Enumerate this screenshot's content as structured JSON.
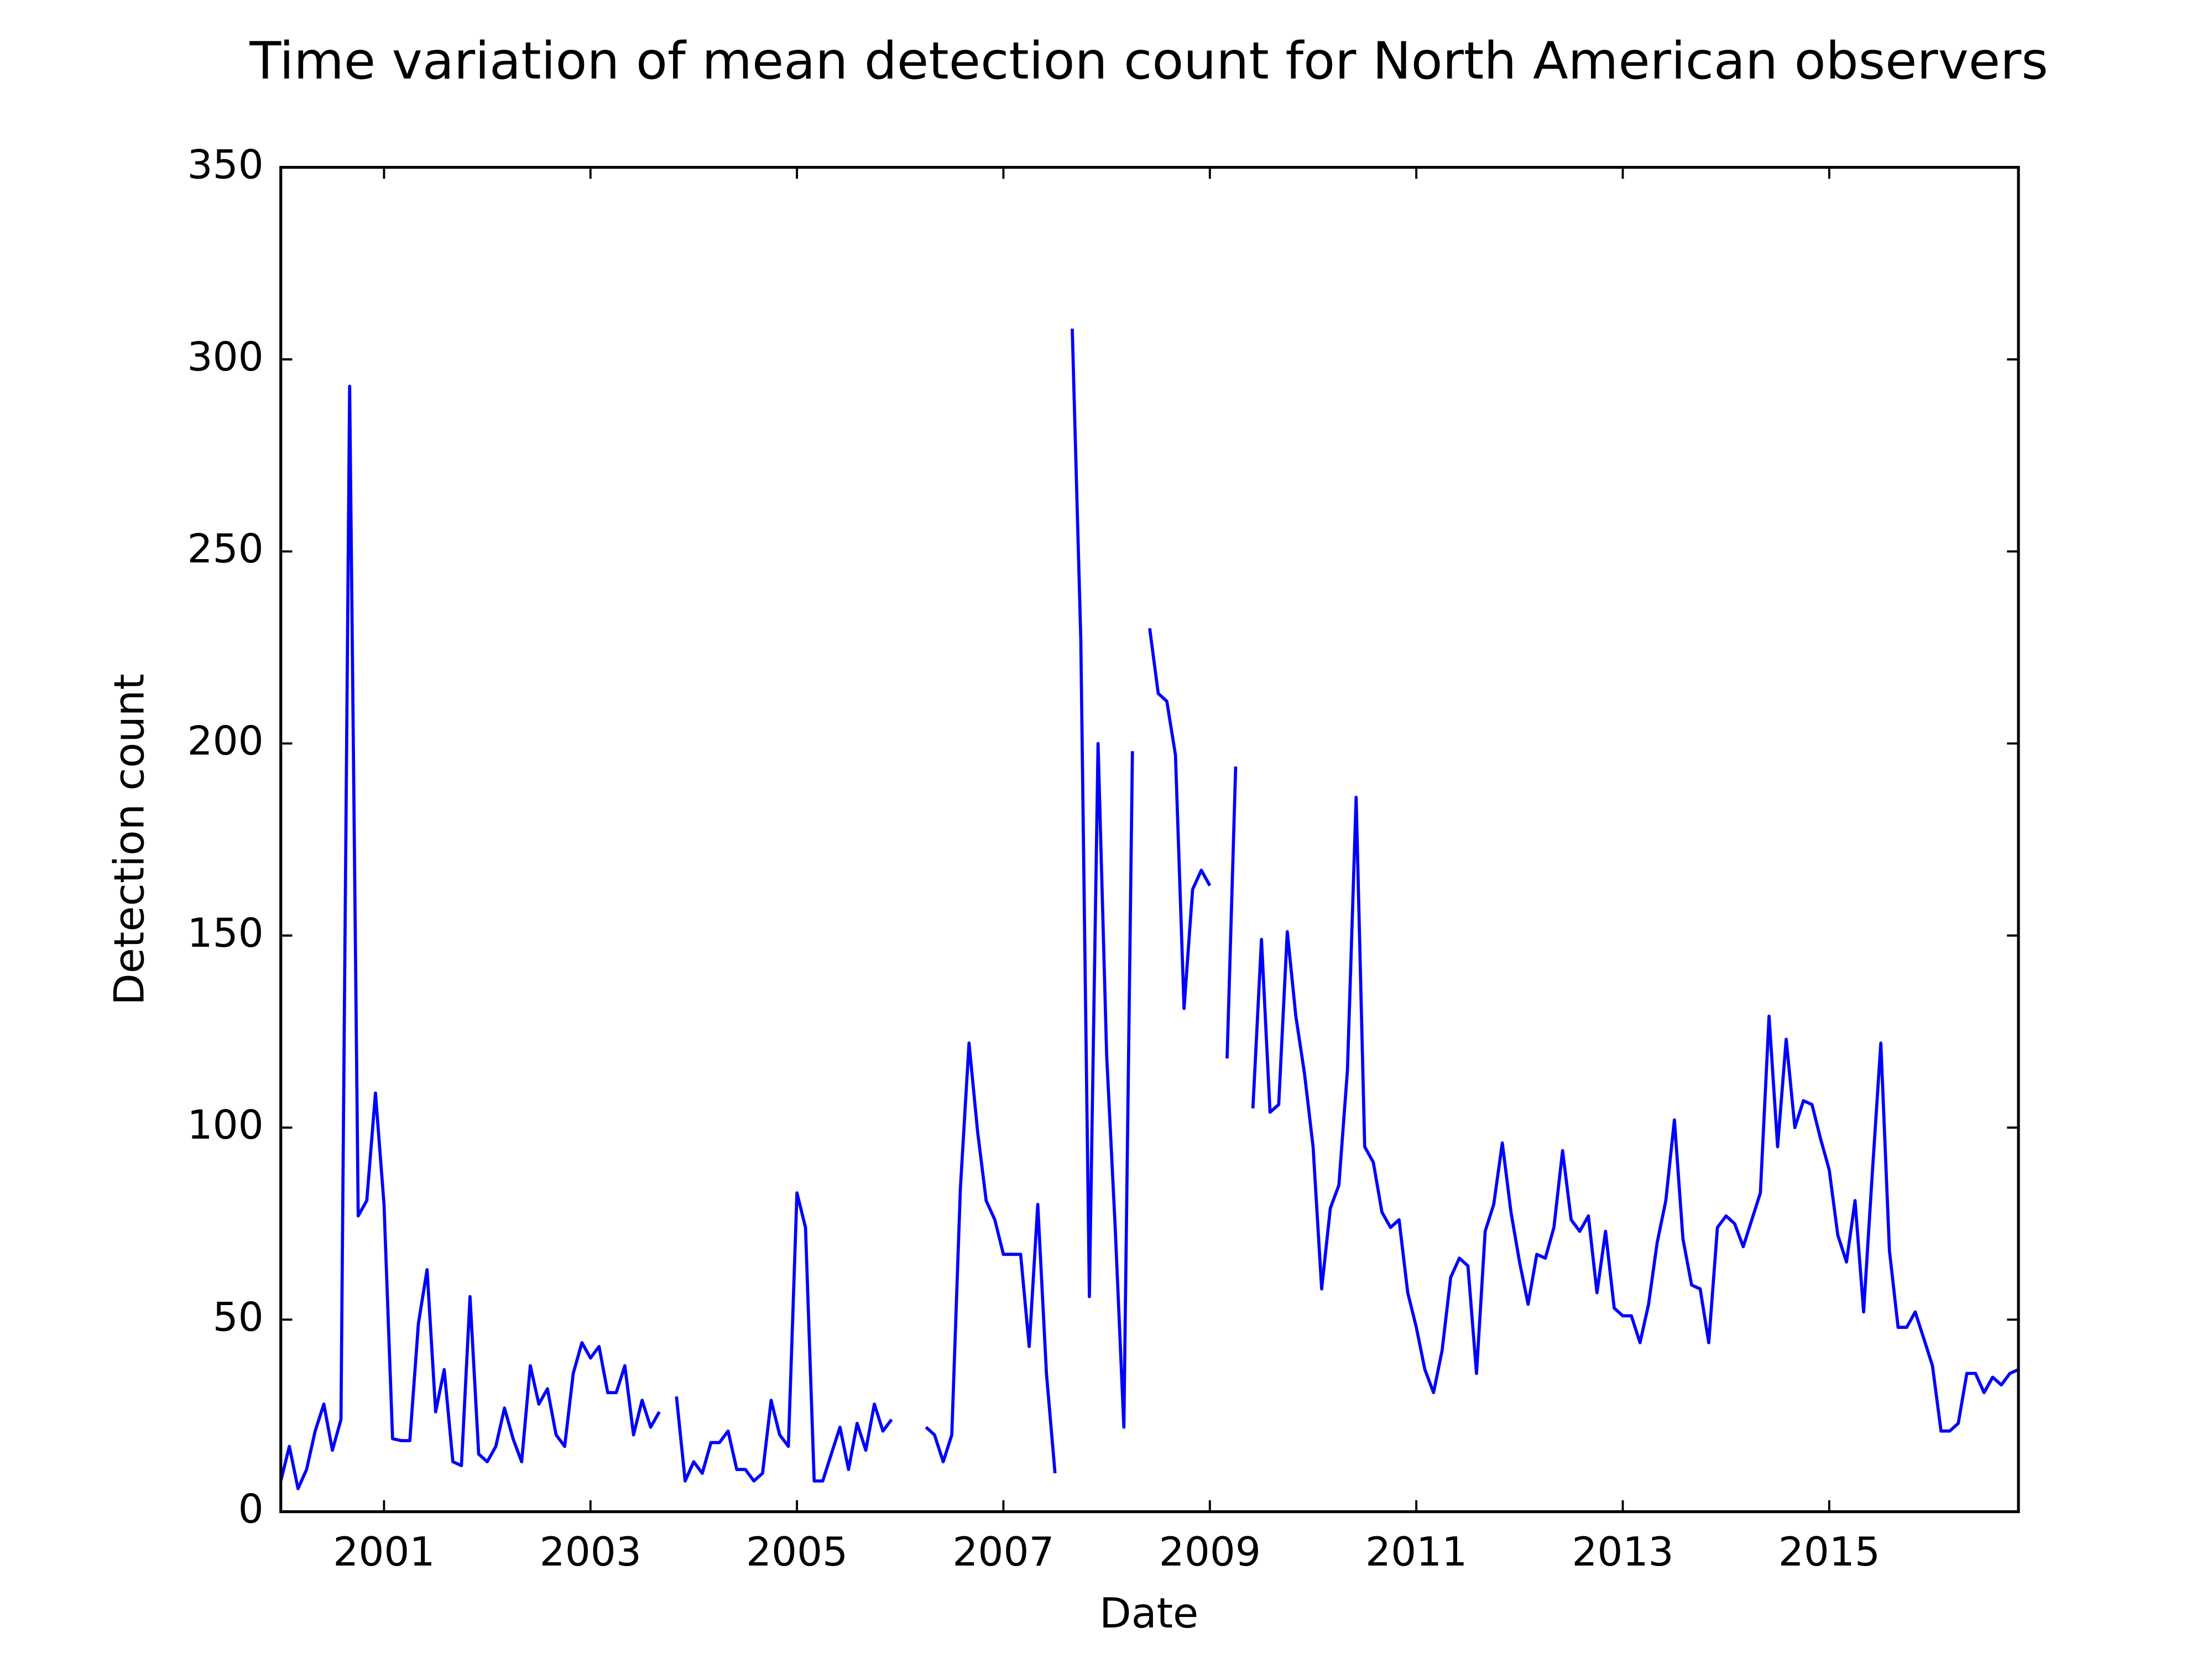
{
  "chart_data": {
    "type": "line",
    "title": "Time variation of mean detection count for North American observers",
    "x_label": "Date",
    "y_label": "Detection count",
    "xlim": [
      2000,
      2016.833
    ],
    "xticks": [
      2001,
      2003,
      2005,
      2007,
      2009,
      2011,
      2013,
      2015
    ],
    "ylim": [
      0,
      350
    ],
    "yticks": [
      0,
      50,
      100,
      150,
      200,
      250,
      300,
      350
    ],
    "grid": false,
    "series": [
      {
        "color": "#0000ff",
        "x": [
          2000,
          2000.083,
          2000.167,
          2000.25,
          2000.333,
          2000.417,
          2000.5,
          2000.583,
          2000.667,
          2000.75,
          2000.833,
          2000.917,
          2001,
          2001.083,
          2001.167,
          2001.25,
          2001.333,
          2001.417,
          2001.5,
          2001.583,
          2001.667,
          2001.75,
          2001.833,
          2001.917,
          2002,
          2002.083,
          2002.167,
          2002.25,
          2002.333,
          2002.417,
          2002.5,
          2002.583,
          2002.667,
          2002.75,
          2002.833,
          2002.917,
          2003,
          2003.083,
          2003.167,
          2003.25,
          2003.333,
          2003.417,
          2003.5,
          2003.583,
          2003.667,
          2003.75,
          2003.833,
          2003.917,
          2004,
          2004.083,
          2004.167,
          2004.25,
          2004.333,
          2004.417,
          2004.5,
          2004.583,
          2004.667,
          2004.75,
          2004.833,
          2004.917,
          2005,
          2005.083,
          2005.167,
          2005.25,
          2005.333,
          2005.417,
          2005.5,
          2005.583,
          2005.667,
          2005.75,
          2005.833,
          2005.917,
          2006,
          2006.083,
          2006.167,
          2006.25,
          2006.333,
          2006.417,
          2006.5,
          2006.583,
          2006.667,
          2006.75,
          2006.833,
          2006.917,
          2007,
          2007.083,
          2007.167,
          2007.25,
          2007.333,
          2007.417,
          2007.5,
          2007.583,
          2007.667,
          2007.75,
          2007.833,
          2007.917,
          2008,
          2008.083,
          2008.167,
          2008.25,
          2008.333,
          2008.417,
          2008.5,
          2008.583,
          2008.667,
          2008.75,
          2008.833,
          2008.917,
          2009,
          2009.083,
          2009.167,
          2009.25,
          2009.333,
          2009.417,
          2009.5,
          2009.583,
          2009.667,
          2009.75,
          2009.833,
          2009.917,
          2010,
          2010.083,
          2010.167,
          2010.25,
          2010.333,
          2010.417,
          2010.5,
          2010.583,
          2010.667,
          2010.75,
          2010.833,
          2010.917,
          2011,
          2011.083,
          2011.167,
          2011.25,
          2011.333,
          2011.417,
          2011.5,
          2011.583,
          2011.667,
          2011.75,
          2011.833,
          2011.917,
          2012,
          2012.083,
          2012.167,
          2012.25,
          2012.333,
          2012.417,
          2012.5,
          2012.583,
          2012.667,
          2012.75,
          2012.833,
          2012.917,
          2013,
          2013.083,
          2013.167,
          2013.25,
          2013.333,
          2013.417,
          2013.5,
          2013.583,
          2013.667,
          2013.75,
          2013.833,
          2013.917,
          2014,
          2014.083,
          2014.167,
          2014.25,
          2014.333,
          2014.417,
          2014.5,
          2014.583,
          2014.667,
          2014.75,
          2014.833,
          2014.917,
          2015,
          2015.083,
          2015.167,
          2015.25,
          2015.333,
          2015.417,
          2015.5,
          2015.583,
          2015.667,
          2015.75,
          2015.833,
          2015.917,
          2016,
          2016.083,
          2016.167,
          2016.25,
          2016.333,
          2016.417,
          2016.5,
          2016.583,
          2016.667,
          2016.75,
          2016.833
        ],
        "values": [
          8,
          17,
          6,
          11,
          21,
          28,
          16,
          24,
          293,
          77,
          81,
          109,
          80,
          19,
          18.5,
          18.5,
          49,
          63,
          26,
          37,
          13,
          12,
          56,
          15,
          13,
          17,
          27,
          19,
          13,
          38,
          28,
          32,
          20,
          17,
          36,
          44,
          40,
          43,
          31,
          31,
          38,
          20,
          29,
          22,
          26,
          null,
          30,
          8,
          13,
          10,
          18,
          18,
          21,
          11,
          11,
          8,
          10,
          29,
          20,
          17,
          83,
          74,
          8,
          8,
          15,
          22,
          11,
          23,
          16,
          28,
          21,
          24,
          null,
          null,
          null,
          22,
          20,
          13,
          20,
          84,
          122,
          99,
          81,
          76,
          67,
          67,
          67,
          43,
          80,
          36,
          10,
          null,
          308,
          227,
          56,
          200,
          119,
          74,
          22,
          198,
          null,
          230,
          213,
          211,
          197,
          131,
          162,
          167,
          163,
          null,
          118,
          194,
          null,
          105,
          149,
          104,
          106,
          151,
          129,
          114,
          95,
          58,
          79,
          85,
          115,
          186,
          95,
          91,
          78,
          74,
          76,
          57,
          48,
          37,
          31,
          42,
          61,
          66,
          64,
          36,
          73,
          80,
          96,
          78,
          65,
          54,
          67,
          66,
          74,
          94,
          76,
          73,
          77,
          57,
          73,
          53,
          51,
          51,
          44,
          54,
          70,
          81,
          102,
          71,
          59,
          58,
          44,
          74,
          77,
          75,
          69,
          76,
          83,
          129,
          95,
          123,
          100,
          107,
          106,
          97,
          89,
          72,
          65,
          81,
          52,
          88,
          122,
          68,
          48,
          48,
          52,
          45,
          38,
          21,
          21,
          23,
          36,
          36,
          31,
          35,
          33,
          36,
          37
        ]
      }
    ]
  }
}
